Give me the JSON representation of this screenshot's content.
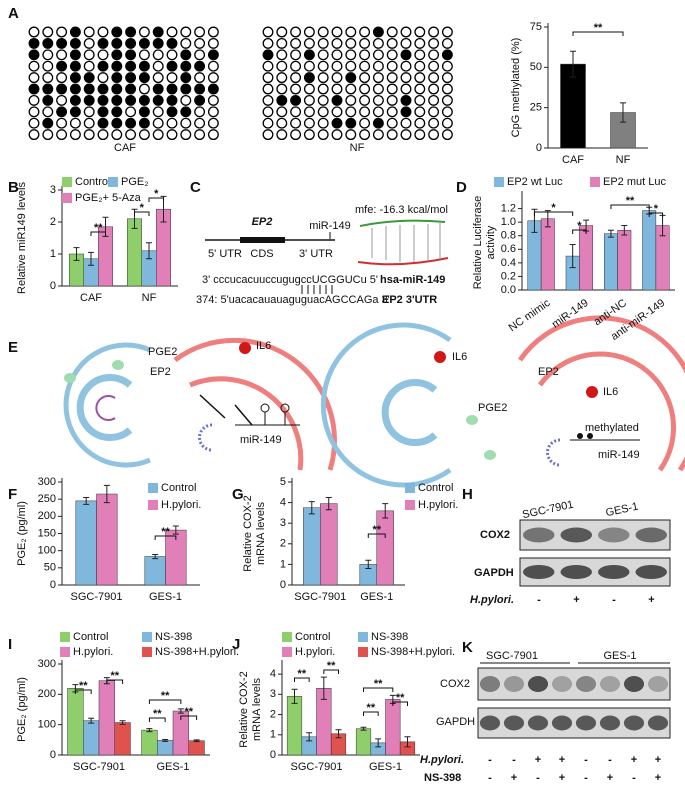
{
  "panel_labels": [
    "A",
    "B",
    "C",
    "D",
    "E",
    "F",
    "G",
    "H",
    "I",
    "J",
    "K"
  ],
  "methylation": [
    {
      "label": "CAF",
      "rows": [
        [
          0,
          0,
          0,
          1,
          0,
          0,
          1,
          1,
          0,
          1,
          0,
          0,
          0,
          0
        ],
        [
          1,
          1,
          1,
          1,
          0,
          1,
          1,
          1,
          1,
          1,
          1,
          0,
          0,
          0
        ],
        [
          1,
          0,
          0,
          1,
          0,
          0,
          1,
          1,
          0,
          0,
          0,
          1,
          0,
          1
        ],
        [
          0,
          0,
          1,
          1,
          0,
          1,
          1,
          1,
          1,
          0,
          1,
          1,
          1,
          0
        ],
        [
          0,
          0,
          0,
          1,
          1,
          0,
          1,
          1,
          1,
          0,
          0,
          1,
          0,
          0
        ],
        [
          1,
          1,
          1,
          1,
          1,
          1,
          1,
          1,
          0,
          1,
          1,
          1,
          1,
          1
        ],
        [
          0,
          1,
          0,
          1,
          1,
          1,
          1,
          1,
          1,
          1,
          1,
          0,
          1,
          0
        ],
        [
          0,
          0,
          1,
          1,
          0,
          1,
          1,
          0,
          1,
          0,
          1,
          1,
          0,
          0
        ],
        [
          0,
          1,
          0,
          0,
          0,
          1,
          1,
          1,
          1,
          0,
          0,
          0,
          0,
          0
        ],
        [
          0,
          0,
          0,
          0,
          0,
          0,
          0,
          0,
          0,
          0,
          0,
          0,
          0,
          0
        ]
      ]
    },
    {
      "label": "NF",
      "rows": [
        [
          0,
          0,
          0,
          0,
          0,
          0,
          0,
          0,
          1,
          0,
          0,
          0,
          0,
          0
        ],
        [
          0,
          0,
          0,
          0,
          0,
          0,
          0,
          0,
          0,
          0,
          0,
          0,
          0,
          0
        ],
        [
          1,
          0,
          0,
          1,
          0,
          0,
          0,
          0,
          0,
          0,
          1,
          0,
          0,
          1
        ],
        [
          0,
          0,
          0,
          0,
          0,
          0,
          0,
          0,
          0,
          0,
          0,
          0,
          0,
          0
        ],
        [
          0,
          0,
          0,
          1,
          0,
          0,
          1,
          0,
          0,
          0,
          0,
          0,
          0,
          0
        ],
        [
          0,
          0,
          0,
          0,
          0,
          0,
          0,
          0,
          0,
          0,
          0,
          0,
          0,
          0
        ],
        [
          0,
          1,
          1,
          0,
          0,
          1,
          0,
          0,
          0,
          0,
          1,
          0,
          0,
          0
        ],
        [
          0,
          0,
          0,
          0,
          0,
          0,
          0,
          0,
          0,
          0,
          1,
          0,
          0,
          0
        ],
        [
          0,
          0,
          0,
          0,
          0,
          1,
          1,
          0,
          1,
          0,
          0,
          0,
          0,
          0
        ],
        [
          0,
          0,
          0,
          0,
          0,
          0,
          0,
          0,
          0,
          0,
          0,
          0,
          0,
          0
        ]
      ]
    }
  ],
  "chart_data": [
    {
      "type": "bar",
      "y_label": "CpG methylated (%)",
      "categories": [
        "CAF",
        "NF"
      ],
      "values": [
        52,
        22
      ],
      "errors": [
        8,
        6
      ],
      "colors": [
        "#000000",
        "#808080"
      ],
      "ylim": [
        0,
        75
      ],
      "yticks": [
        0,
        25,
        50,
        75
      ],
      "annotations": [
        "**"
      ]
    },
    {
      "type": "bar",
      "y_label": "Relative miR149 levels",
      "categories": [
        "CAF",
        "NF"
      ],
      "series": [
        {
          "name": "Control",
          "color": "#8fcf6b",
          "values": [
            1.0,
            2.1
          ],
          "errors": [
            0.2,
            0.3
          ]
        },
        {
          "name": "PGE₂",
          "color": "#7fb8dc",
          "values": [
            0.85,
            1.1
          ],
          "errors": [
            0.2,
            0.25
          ]
        },
        {
          "name": "PGE₂+ 5-Aza",
          "color": "#e07fb8",
          "values": [
            1.85,
            2.4
          ],
          "errors": [
            0.3,
            0.4
          ]
        }
      ],
      "ylim": [
        0,
        3
      ],
      "yticks": [
        0,
        1,
        2,
        3
      ],
      "annotations": [
        "**",
        "*",
        "*"
      ]
    },
    {
      "type": "bar",
      "y_label": [
        "Relative Luciferase",
        "activity"
      ],
      "categories": [
        "NC mimic",
        "miR-149",
        "anti-NC",
        "anti-miR-149"
      ],
      "series": [
        {
          "name": "EP2 wt Luc",
          "color": "#7fb8dc",
          "values": [
            1.02,
            0.5,
            0.83,
            1.17
          ],
          "errors": [
            0.17,
            0.17,
            0.05,
            0.05
          ]
        },
        {
          "name": "EP2 mut Luc",
          "color": "#e07fb8",
          "values": [
            1.05,
            0.95,
            0.88,
            0.95
          ],
          "errors": [
            0.12,
            0.08,
            0.07,
            0.15
          ]
        }
      ],
      "ylim": [
        0,
        1.4
      ],
      "yticks": [
        {
          "value": 0,
          "label": "0.0"
        },
        0.2,
        0.4,
        0.6,
        0.8,
        {
          "value": 1,
          "label": "1.0"
        },
        1.2
      ],
      "annotations": [
        "*",
        "*",
        "**",
        "*"
      ]
    },
    {
      "type": "bar",
      "y_label": "PGE₂ (pg/ml)",
      "categories": [
        "SGC-7901",
        "GES-1"
      ],
      "series": [
        {
          "name": "Control",
          "color": "#7fb8dc",
          "values": [
            245,
            83
          ],
          "errors": [
            10,
            6
          ]
        },
        {
          "name": "H.pylori.",
          "color": "#e07fb8",
          "values": [
            265,
            160
          ],
          "errors": [
            25,
            12
          ]
        }
      ],
      "ylim": [
        0,
        300
      ],
      "yticks": [
        0,
        50,
        100,
        150,
        200,
        250,
        300
      ],
      "annotations": [
        "**"
      ]
    },
    {
      "type": "bar",
      "y_label": [
        "Relative COX-2",
        "mRNA levels"
      ],
      "categories": [
        "SGC-7901",
        "GES-1"
      ],
      "series": [
        {
          "name": "Control",
          "color": "#7fb8dc",
          "values": [
            3.75,
            1.0
          ],
          "errors": [
            0.3,
            0.2
          ]
        },
        {
          "name": "H.pylori.",
          "color": "#e07fb8",
          "values": [
            3.95,
            3.6
          ],
          "errors": [
            0.3,
            0.35
          ]
        }
      ],
      "ylim": [
        0,
        5
      ],
      "yticks": [
        0,
        1,
        2,
        3,
        4,
        5
      ],
      "annotations": [
        "**"
      ]
    },
    {
      "type": "bar",
      "y_label": "PGE₂ (pg/ml)",
      "categories": [
        "SGC-7901",
        "GES-1"
      ],
      "series": [
        {
          "name": "Control",
          "color": "#8fcf6b",
          "values": [
            220,
            82
          ],
          "errors": [
            12,
            5
          ]
        },
        {
          "name": "NS-398",
          "color": "#7fb8dc",
          "values": [
            113,
            48
          ],
          "errors": [
            8,
            3
          ]
        },
        {
          "name": "H.pylori.",
          "color": "#e07fb8",
          "values": [
            245,
            145
          ],
          "errors": [
            10,
            7
          ]
        },
        {
          "name": "NS-398+H.pylori.",
          "color": "#e0524d",
          "values": [
            107,
            47
          ],
          "errors": [
            6,
            3
          ]
        }
      ],
      "ylim": [
        0,
        300
      ],
      "yticks": [
        0,
        100,
        200,
        300
      ],
      "annotations": [
        "**",
        "**",
        "**",
        "**",
        "**"
      ]
    },
    {
      "type": "bar",
      "y_label": [
        "Relative COX-2",
        "mRNA levels"
      ],
      "categories": [
        "SGC-7901",
        "GES-1"
      ],
      "series": [
        {
          "name": "Control",
          "color": "#8fcf6b",
          "values": [
            2.9,
            1.3
          ],
          "errors": [
            0.35,
            0.07
          ]
        },
        {
          "name": "NS-398",
          "color": "#7fb8dc",
          "values": [
            0.9,
            0.6
          ],
          "errors": [
            0.2,
            0.2
          ]
        },
        {
          "name": "H.pylori.",
          "color": "#e07fb8",
          "values": [
            3.3,
            2.75
          ],
          "errors": [
            0.55,
            0.2
          ]
        },
        {
          "name": "NS-398+H.pylori.",
          "color": "#e0524d",
          "values": [
            1.05,
            0.65
          ],
          "errors": [
            0.2,
            0.25
          ]
        }
      ],
      "ylim": [
        0,
        4.5
      ],
      "yticks": [
        0,
        1,
        2,
        3,
        4
      ],
      "annotations": [
        "**",
        "**",
        "**",
        "**",
        "**"
      ]
    }
  ],
  "diagram_c": {
    "gene": "EP2",
    "mirna": "miR-149",
    "utr5": "5' UTR",
    "cds": "CDS",
    "utr3": "3' UTR",
    "mfe": "mfe: -16.3 kcal/mol",
    "mir_seq": "3' cccucacuuccugugccUCGGUCu 5'",
    "mir_name": "hsa-miR-149",
    "target_seq": "374: 5'uacacauauaguguacAGCCAGa 3'",
    "target_name": "EP2  3'UTR"
  },
  "diagram_e": {
    "left": [
      "PGE2",
      "EP2",
      "IL6",
      "miR-149"
    ],
    "right": [
      "IL6",
      "EP2",
      "IL6",
      "PGE2",
      "methylated",
      "miR-149"
    ]
  },
  "blot_h": {
    "groups": [
      "SGC-7901",
      "GES-1"
    ],
    "bands": [
      "COX2",
      "GAPDH"
    ],
    "treatment": "H.pylori.",
    "signs": [
      "-",
      "+",
      "-",
      "+"
    ]
  },
  "blot_k": {
    "groups": [
      "SGC-7901",
      "GES-1"
    ],
    "bands": [
      "COX2",
      "GAPDH"
    ],
    "treatments": [
      "H.pylori.",
      "NS-398"
    ],
    "signs": [
      [
        "-",
        "-",
        "+",
        "+",
        "-",
        "-",
        "+",
        "+"
      ],
      [
        "-",
        "+",
        "-",
        "+",
        "-",
        "+",
        "-",
        "+"
      ]
    ]
  }
}
